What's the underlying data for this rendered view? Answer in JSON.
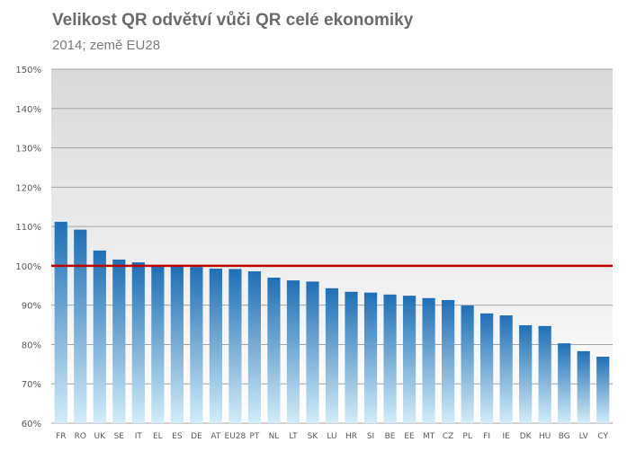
{
  "chart_data": {
    "type": "bar",
    "title": "Velikost QR odvětví vůči QR celé ekonomiky",
    "subtitle": "2014; země EU28",
    "categories": [
      "FR",
      "RO",
      "UK",
      "SE",
      "IT",
      "EL",
      "ES",
      "DE",
      "AT",
      "EU28",
      "PT",
      "NL",
      "LT",
      "SK",
      "LU",
      "HR",
      "SI",
      "BE",
      "EE",
      "MT",
      "CZ",
      "PL",
      "FI",
      "IE",
      "DK",
      "HU",
      "BG",
      "LV",
      "CY"
    ],
    "values": [
      111.2,
      109.2,
      103.9,
      101.6,
      100.9,
      100.0,
      99.9,
      99.7,
      99.3,
      99.2,
      98.6,
      97.0,
      96.3,
      96.0,
      94.3,
      93.4,
      93.2,
      92.7,
      92.4,
      91.8,
      91.3,
      89.9,
      87.9,
      87.4,
      84.9,
      84.7,
      80.3,
      78.3,
      76.9
    ],
    "ylim": [
      60,
      150
    ],
    "yticks": [
      "60%",
      "70%",
      "80%",
      "90%",
      "100%",
      "110%",
      "120%",
      "130%",
      "140%",
      "150%"
    ],
    "ytick_values": [
      60,
      70,
      80,
      90,
      100,
      110,
      120,
      130,
      140,
      150
    ],
    "reference_line": 100,
    "grid": true,
    "colors": {
      "bar_top": "#1f6fb5",
      "bar_bottom": "#d3ecf7",
      "reference_line": "#c00000",
      "plot_bg_top": "#d9d9d9",
      "plot_bg_bottom": "#ffffff",
      "grid": "#a6a6a6"
    }
  }
}
